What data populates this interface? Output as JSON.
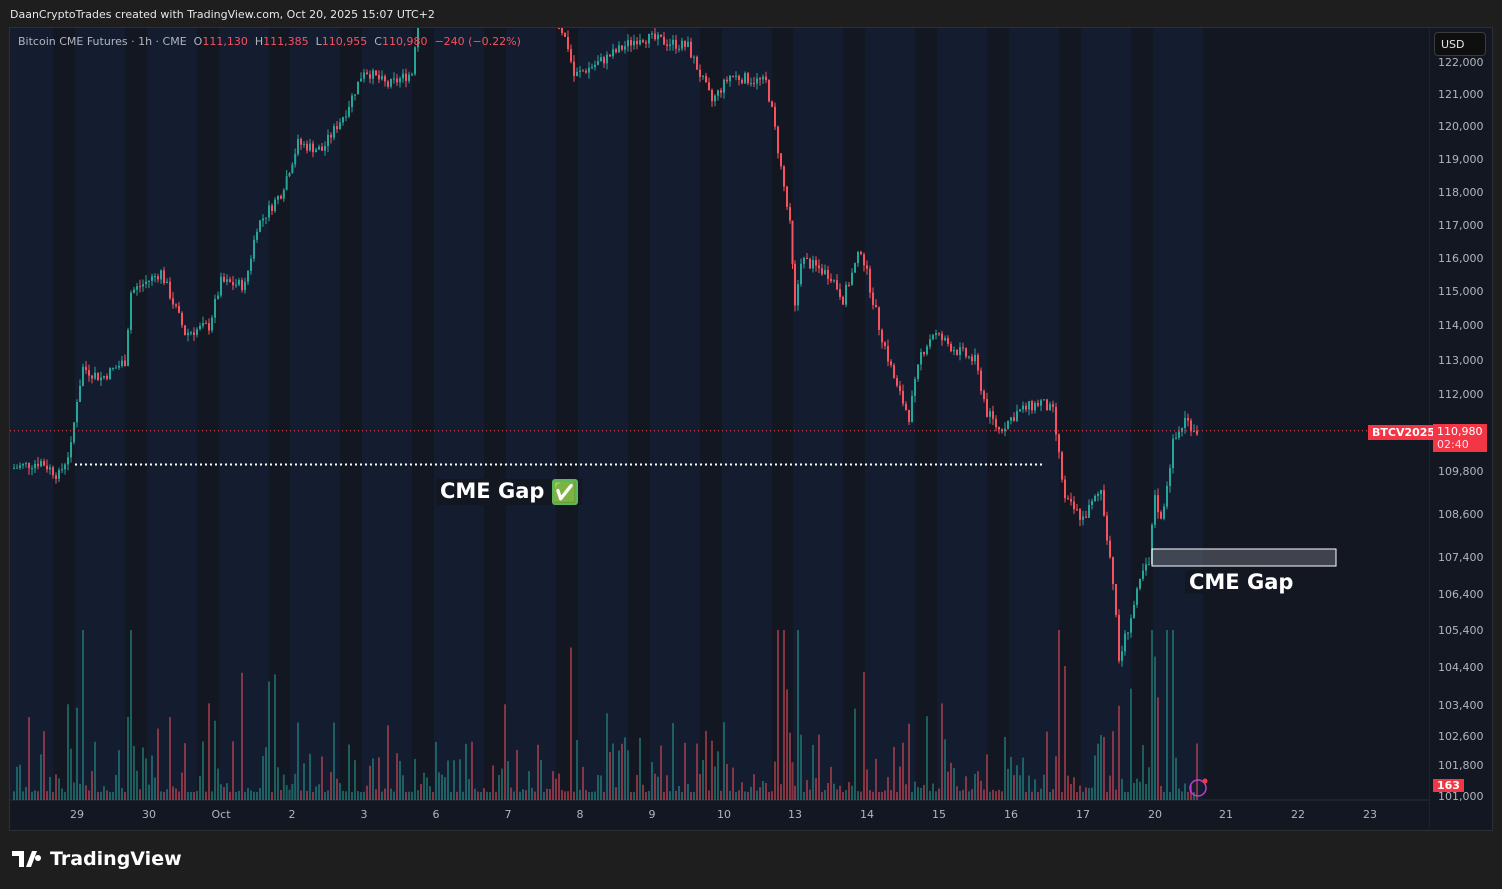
{
  "credit": "DaanCryptoTrades created with TradingView.com, Oct 20, 2025 15:07 UTC+2",
  "legend": {
    "symbol": "Bitcoin CME Futures · 1h · CME",
    "o_label": "O",
    "o": "111,130",
    "h_label": "H",
    "h": "111,385",
    "l_label": "L",
    "l": "110,955",
    "c_label": "C",
    "c": "110,980",
    "change": "−240 (−0.22%)"
  },
  "currency": "USD",
  "ticker_tag": "BTCV2025",
  "last_price": "110,980",
  "countdown": "02:40",
  "volume_last": "163",
  "brand": "TradingView",
  "colors": {
    "up": "#26a69a",
    "down": "#f7525f",
    "background": "#131722",
    "session_band": "#141c2f"
  },
  "annotations": [
    {
      "text": "CME Gap",
      "emoji": "✅",
      "type": "filled gap",
      "price": 109900
    },
    {
      "text": "CME Gap",
      "type": "open gap box",
      "price_top": 107700,
      "price_bottom": 107250
    }
  ],
  "chart_data": {
    "type": "candlestick",
    "interval": "1h",
    "y_ticks": [
      "122,000",
      "121,000",
      "120,000",
      "119,000",
      "118,000",
      "117,000",
      "116,000",
      "115,000",
      "114,000",
      "113,000",
      "112,000",
      "109,800",
      "108,600",
      "107,400",
      "106,400",
      "105,400",
      "104,400",
      "103,400",
      "102,600",
      "101,800",
      "101,000"
    ],
    "x_ticks": [
      "29",
      "30",
      "Oct",
      "2",
      "3",
      "6",
      "7",
      "8",
      "9",
      "10",
      "13",
      "14",
      "15",
      "16",
      "17",
      "20",
      "21",
      "22",
      "23"
    ],
    "price_path": [
      [
        "09-28 02",
        109900
      ],
      [
        "09-28 12",
        110100
      ],
      [
        "09-28 18",
        109700
      ],
      [
        "09-28 22",
        110500
      ],
      [
        "09-29 00",
        111900
      ],
      [
        "09-29 02",
        112800
      ],
      [
        "09-29 08",
        112500
      ],
      [
        "09-29 16",
        113000
      ],
      [
        "09-29 18",
        115000
      ],
      [
        "09-30 04",
        115600
      ],
      [
        "09-30 12",
        113800
      ],
      [
        "09-30 20",
        114000
      ],
      [
        "10-01 00",
        115300
      ],
      [
        "10-01 08",
        115200
      ],
      [
        "10-01 12",
        117000
      ],
      [
        "10-01 20",
        118000
      ],
      [
        "10-02 02",
        119500
      ],
      [
        "10-02 10",
        119300
      ],
      [
        "10-02 18",
        120500
      ],
      [
        "10-03 00",
        121800
      ],
      [
        "10-03 08",
        121300
      ],
      [
        "10-03 16",
        121700
      ],
      [
        "10-03 18",
        123500
      ],
      [
        "10-06 12",
        125000
      ],
      [
        "10-07 12",
        124500
      ],
      [
        "10-07 20",
        122500
      ],
      [
        "10-07 22",
        121600
      ],
      [
        "10-08 06",
        122000
      ],
      [
        "10-08 20",
        122800
      ],
      [
        "10-09 12",
        122500
      ],
      [
        "10-09 20",
        120800
      ],
      [
        "10-10 02",
        121600
      ],
      [
        "10-10 14",
        121400
      ],
      [
        "10-10 16",
        120500
      ],
      [
        "10-10 22",
        117000
      ],
      [
        "10-13 00",
        114500
      ],
      [
        "10-13 02",
        116000
      ],
      [
        "10-13 12",
        115500
      ],
      [
        "10-13 16",
        114800
      ],
      [
        "10-13 22",
        116300
      ],
      [
        "10-14 04",
        114000
      ],
      [
        "10-14 10",
        112200
      ],
      [
        "10-14 14",
        111400
      ],
      [
        "10-14 18",
        113200
      ],
      [
        "10-14 22",
        113800
      ],
      [
        "10-15 06",
        113300
      ],
      [
        "10-15 12",
        113000
      ],
      [
        "10-15 16",
        111500
      ],
      [
        "10-15 20",
        111000
      ],
      [
        "10-16 02",
        111500
      ],
      [
        "10-16 10",
        111800
      ],
      [
        "10-16 14",
        111500
      ],
      [
        "10-16 18",
        109000
      ],
      [
        "10-17 00",
        108500
      ],
      [
        "10-17 06",
        109300
      ],
      [
        "10-17 10",
        106800
      ],
      [
        "10-17 12",
        104600
      ],
      [
        "10-17 16",
        105800
      ],
      [
        "10-17 20",
        107000
      ],
      [
        "10-17 22",
        107200
      ],
      [
        "10-20 00",
        109200
      ],
      [
        "10-20 02",
        108400
      ],
      [
        "10-20 06",
        110600
      ],
      [
        "10-20 10",
        111300
      ],
      [
        "10-20 14",
        110980
      ]
    ]
  }
}
